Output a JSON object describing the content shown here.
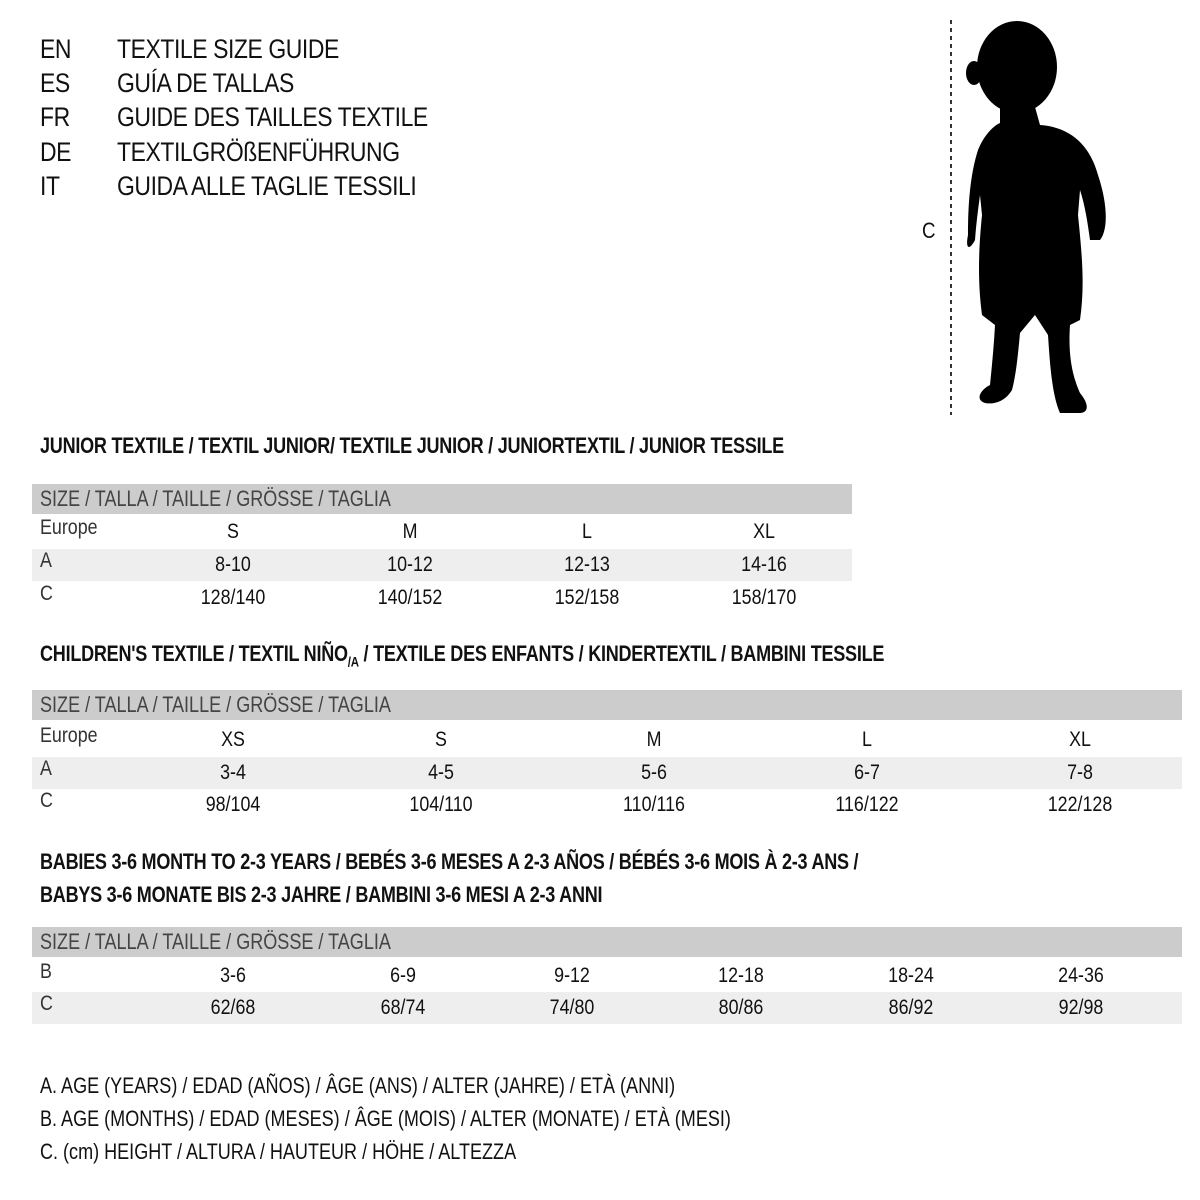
{
  "header": [
    {
      "code": "EN",
      "text": "TEXTILE SIZE GUIDE"
    },
    {
      "code": "ES",
      "text": "GUÍA DE TALLAS"
    },
    {
      "code": "FR",
      "text": "GUIDE DES TAILLES TEXTILE"
    },
    {
      "code": "DE",
      "text": "TEXTILGRÖßENFÜHRUNG"
    },
    {
      "code": "IT",
      "text": "GUIDA ALLE TAGLIE TESSILI"
    }
  ],
  "figure": {
    "measure_label": "C",
    "icon": "child-silhouette-icon"
  },
  "size_header": "SIZE / TALLA / TAILLE / GRÖSSE / TAGLIA",
  "junior": {
    "title": "JUNIOR TEXTILE / TEXTIL JUNIOR/ TEXTILE JUNIOR / JUNIORTEXTIL / JUNIOR TESSILE",
    "rows": [
      {
        "label": "Europe",
        "values": [
          "S",
          "M",
          "L",
          "XL"
        ]
      },
      {
        "label": "A",
        "values": [
          "8-10",
          "10-12",
          "12-13",
          "14-16"
        ]
      },
      {
        "label": "C",
        "values": [
          "128/140",
          "140/152",
          "152/158",
          "158/170"
        ]
      }
    ]
  },
  "children": {
    "title_a": "CHILDREN'S TEXTILE / TEXTIL NIÑO",
    "title_sub": "/A",
    "title_b": " / TEXTILE DES ENFANTS / KINDERTEXTIL / BAMBINI TESSILE",
    "rows": [
      {
        "label": "Europe",
        "values": [
          "XS",
          "S",
          "M",
          "L",
          "XL"
        ]
      },
      {
        "label": "A",
        "values": [
          "3-4",
          "4-5",
          "5-6",
          "6-7",
          "7-8"
        ]
      },
      {
        "label": "C",
        "values": [
          "98/104",
          "104/110",
          "110/116",
          "116/122",
          "122/128"
        ]
      }
    ]
  },
  "babies": {
    "title_line1": "BABIES 3-6 MONTH TO 2-3 YEARS / BEBÉS 3-6 MESES A 2-3 AÑOS / BÉBÉS 3-6 MOIS À 2-3 ANS /",
    "title_line2": "BABYS 3-6 MONATE BIS 2-3 JAHRE / BAMBINI 3-6 MESI A 2-3 ANNI",
    "rows": [
      {
        "label": "B",
        "values": [
          "3-6",
          "6-9",
          "9-12",
          "12-18",
          "18-24",
          "24-36"
        ]
      },
      {
        "label": "C",
        "values": [
          "62/68",
          "68/74",
          "74/80",
          "80/86",
          "86/92",
          "92/98"
        ]
      }
    ]
  },
  "legend": [
    "A. AGE (YEARS) / EDAD (AÑOS) / ÂGE (ANS) / ALTER (JAHRE) / ETÀ (ANNI)",
    "B. AGE (MONTHS) / EDAD (MESES) / ÂGE (MOIS) / ALTER (MONATE) / ETÀ (MESI)",
    "C. (cm) HEIGHT / ALTURA / HAUTEUR / HÖHE / ALTEZZA"
  ]
}
